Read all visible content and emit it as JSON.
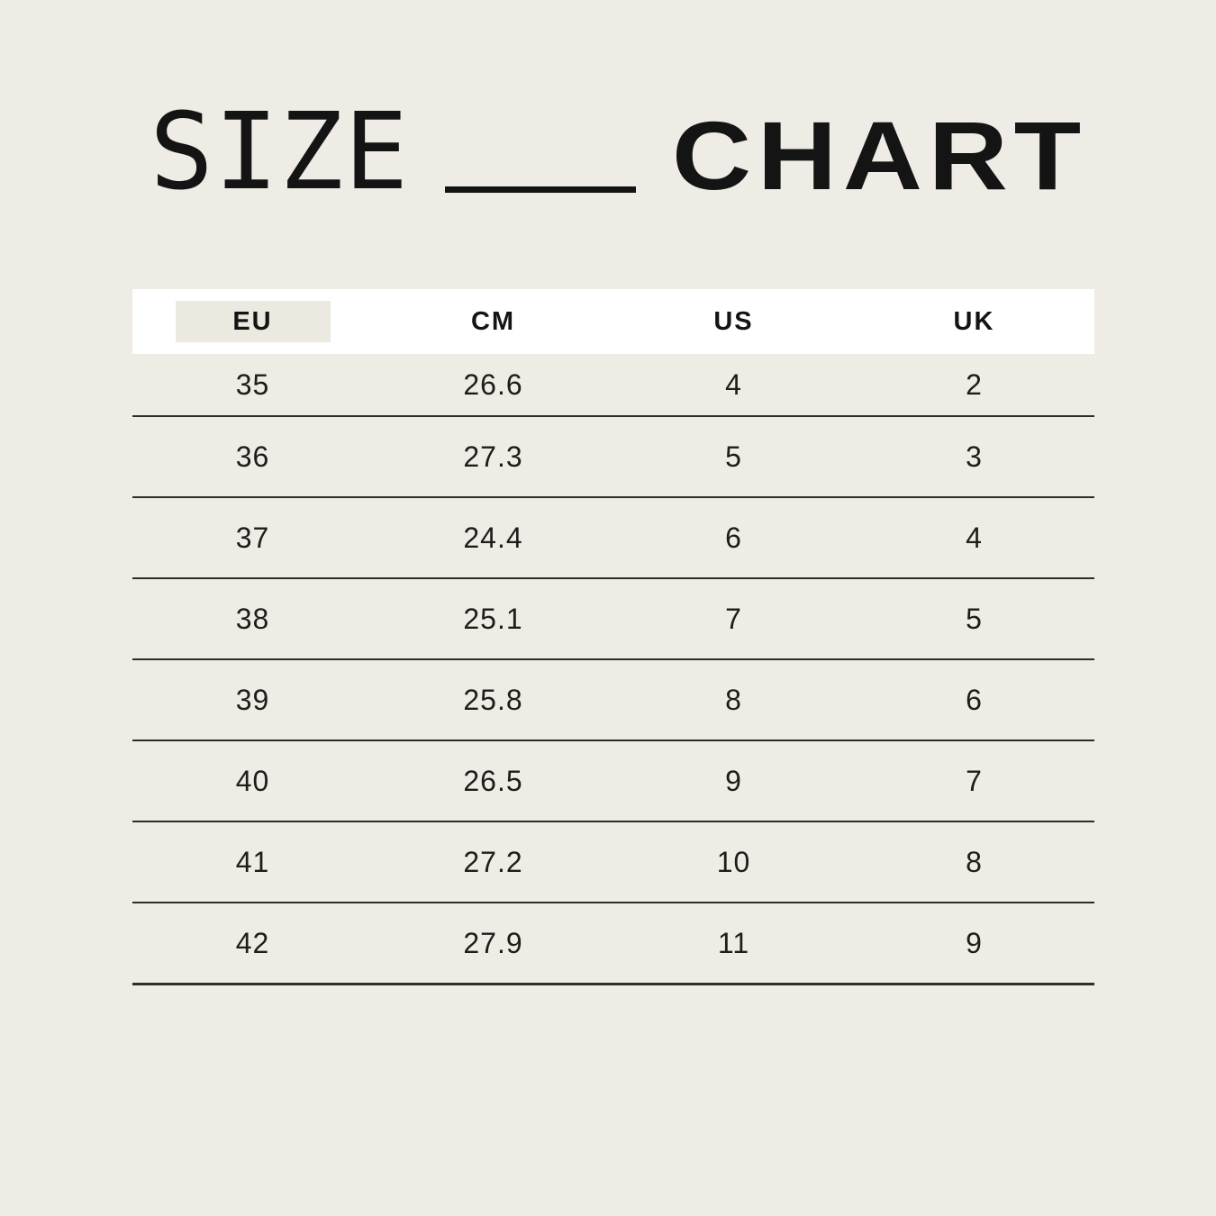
{
  "page": {
    "background_color": "#EFECE6",
    "text_color": "#141414"
  },
  "title": {
    "word1": "SIZE",
    "word2": "CHART"
  },
  "table": {
    "header_bg_color": "#FFFFFF",
    "eu_highlight_color": "#ECE9E1",
    "rule_color": "#2F2D2A",
    "headers": [
      "EU",
      "CM",
      "US",
      "UK"
    ],
    "rows": [
      [
        "35",
        "26.6",
        "4",
        "2"
      ],
      [
        "36",
        "27.3",
        "5",
        "3"
      ],
      [
        "37",
        "24.4",
        "6",
        "4"
      ],
      [
        "38",
        "25.1",
        "7",
        "5"
      ],
      [
        "39",
        "25.8",
        "8",
        "6"
      ],
      [
        "40",
        "26.5",
        "9",
        "7"
      ],
      [
        "41",
        "27.2",
        "10",
        "8"
      ],
      [
        "42",
        "27.9",
        "11",
        "9"
      ]
    ]
  },
  "chart_data": {
    "type": "table",
    "title": "SIZE CHART",
    "columns": [
      "EU",
      "CM",
      "US",
      "UK"
    ],
    "rows": [
      [
        35,
        26.6,
        4,
        2
      ],
      [
        36,
        27.3,
        5,
        3
      ],
      [
        37,
        24.4,
        6,
        4
      ],
      [
        38,
        25.1,
        7,
        5
      ],
      [
        39,
        25.8,
        8,
        6
      ],
      [
        40,
        26.5,
        9,
        7
      ],
      [
        41,
        27.2,
        10,
        8
      ],
      [
        42,
        27.9,
        11,
        9
      ]
    ],
    "highlighted_column": "EU"
  }
}
